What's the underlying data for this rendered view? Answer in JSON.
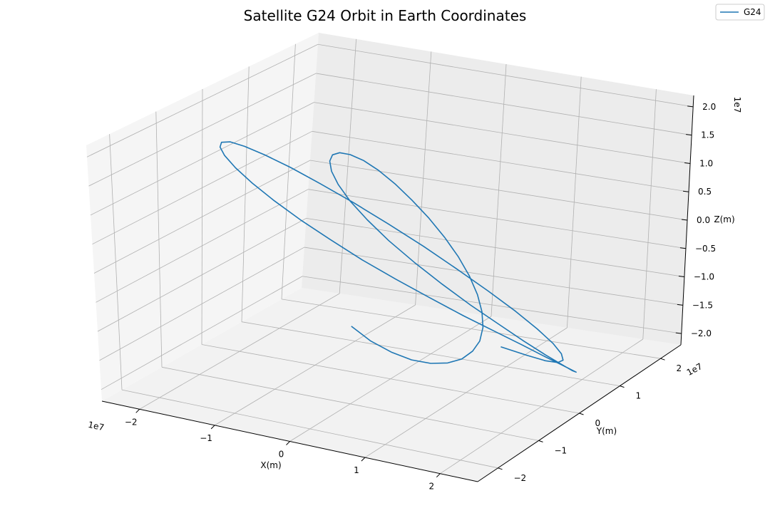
{
  "chart_data": {
    "type": "line",
    "title": "Satellite G24 Orbit in Earth Coordinates",
    "xlabel": "X(m)",
    "ylabel": "Y(m)",
    "zlabel": "Z(m)",
    "x_ticks": [
      "−2",
      "−1",
      "0",
      "1",
      "2"
    ],
    "y_ticks": [
      "−2",
      "−1",
      "0",
      "1",
      "2"
    ],
    "z_ticks": [
      "−2.0",
      "−1.5",
      "−1.0",
      "−0.5",
      "0.0",
      "0.5",
      "1.0",
      "1.5",
      "2.0"
    ],
    "x_offset": "1e7",
    "y_offset": "1e7",
    "z_offset": "1e7",
    "xlim": [
      -25000000.0,
      25000000.0
    ],
    "ylim": [
      -25000000.0,
      25000000.0
    ],
    "zlim": [
      -22000000.0,
      22000000.0
    ],
    "grid": true,
    "legend": "top-right",
    "series": [
      {
        "name": "G24",
        "color": "#1f77b4",
        "x": [
          -107000.0,
          1120000.0,
          2290000.0,
          3300000.0,
          4080000.0,
          4560000.0,
          4720000.0,
          4550000.0,
          4080000.0,
          3340000.0,
          2390000.0,
          1280000.0,
          97000.0,
          -1100000.0,
          -2240000.0,
          -3240000.0,
          -4030000.0,
          -4550000.0,
          -4760000.0,
          -4630000.0,
          -4160000.0,
          -3360000.0,
          -2230000.0,
          -789000.0,
          939000.0,
          2940000.0,
          5200000.0,
          7710000.0,
          10400000.0,
          13200000.0,
          15900000.0,
          18400000.0,
          20600000.0,
          22300000.0,
          23300000.0,
          23600000.0,
          23100000.0,
          21700000.0,
          19500000.0,
          16600000.0,
          13000000.0,
          8980000.0,
          4700000.0,
          319000.0,
          -3990000.0,
          -8060000.0,
          -11700000.0,
          -14900000.0,
          -17500000.0,
          -19400000.0,
          -20600000.0,
          -21000000.0,
          -20600000.0,
          -19400000.0,
          -17500000.0,
          -14800000.0,
          -11600000.0,
          -7870000.0,
          -3740000.0,
          641000.0,
          5120000.0,
          9510000.0,
          13700000.0,
          17400000.0,
          20500000.0,
          22900000.0,
          24400000.0,
          24900000.0,
          24300000.0,
          22700000.0,
          20100000.0,
          16600000.0,
          12300000.0,
          7340000.0
        ],
        "y": [
          -9680000.0,
          -7180000.0,
          -4280000.0,
          -1110000.0,
          2220000.0,
          5570000.0,
          8810000.0,
          11800000.0,
          14400000.0,
          16500000.0,
          17900000.0,
          18700000.0,
          18700000.0,
          18000000.0,
          16500000.0,
          14300000.0,
          11500000.0,
          8300000.0,
          4720000.0,
          904000.0,
          -3010000.0,
          -6860000.0,
          -10500000.0,
          -13700000.0,
          -16400000.0,
          -18500000.0,
          -19900000.0,
          -20500000.0,
          -20400000.0,
          -19500000.0,
          -17800000.0,
          -15500000.0,
          -12600000.0,
          -9420000.0,
          -5900000.0,
          -2210000.0,
          1510000.0,
          5120000.0,
          8470000.0,
          11400000.0,
          13800000.0,
          15700000.0,
          16800000.0,
          17200000.0,
          16900000.0,
          15900000.0,
          14300000.0,
          12200000.0,
          9610000.0,
          6760000.0,
          3710000.0,
          560000.0,
          -2600000.0,
          -5680000.0,
          -8600000.0,
          -11300000.0,
          -13700000.0,
          -15700000.0,
          -17300000.0,
          -18400000.0,
          -18900000.0,
          -18900000.0,
          -18300000.0,
          -17100000.0,
          -15300000.0,
          -13000000.0,
          -10300000.0,
          -7200000.0,
          -3800000.0,
          -211000.0,
          3460000.0,
          7070000.0,
          10500000.0,
          13500000.0
        ],
        "z": [
          -8640000.0,
          -12000000.0,
          -14900000.0,
          -17400000.0,
          -19300000.0,
          -20600000.0,
          -21300000.0,
          -21300000.0,
          -20800000.0,
          -19500000.0,
          -17600000.0,
          -15200000.0,
          -12200000.0,
          -8820000.0,
          -5010000.0,
          -937000.0,
          3230000.0,
          7290000.0,
          11100000.0,
          14500000.0,
          17300000.0,
          19500000.0,
          21000000.0,
          21700000.0,
          21600000.0,
          20800000.0,
          19200000.0,
          16900000.0,
          14000000.0,
          10600000.0,
          6770000.0,
          2720000.0,
          -1410000.0,
          -5460000.0,
          -9270000.0,
          -12700000.0,
          -15700000.0,
          -18000000.0,
          -19800000.0,
          -20900000.0,
          -21300000.0,
          -21000000.0,
          -20000000.0,
          -18400000.0,
          -16100000.0,
          -13300000.0,
          -10100000.0,
          -6410000.0,
          -2520000.0,
          1470000.0,
          5430000.0,
          9220000.0,
          12700000.0,
          15700000.0,
          18200000.0,
          20100000.0,
          21200000.0,
          21600000.0,
          21300000.0,
          20200000.0,
          18400000.0,
          16000000.0,
          13000000.0,
          9500000.0,
          5690000.0,
          1710000.0,
          -2300000.0,
          -6200000.0,
          -9850000.0,
          -13100000.0,
          -15900000.0,
          -18100000.0,
          -19700000.0,
          -20700000.0
        ]
      }
    ]
  }
}
